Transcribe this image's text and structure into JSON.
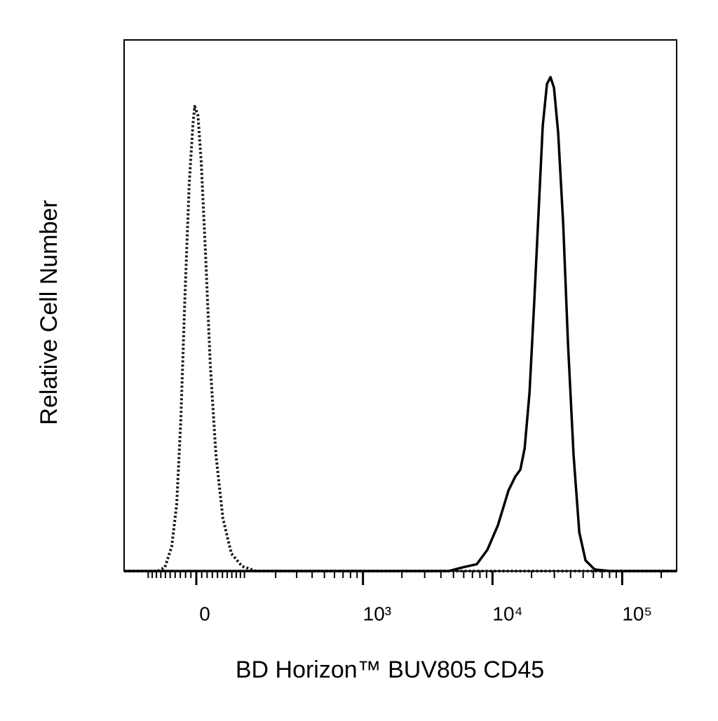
{
  "chart_data": {
    "type": "line",
    "xlabel": "BD Horizon™ BUV805 CD45",
    "ylabel": "Relative Cell Number",
    "xscale": "asinh",
    "xscale_linear_width": 104,
    "xlim": [
      -173,
      263000
    ],
    "ylim": [
      0,
      100
    ],
    "xticks": [
      0,
      {
        "value": 1000,
        "label": "10³"
      },
      {
        "value": 10000,
        "label": "10⁴"
      },
      {
        "value": 100000,
        "label": "10⁵"
      }
    ],
    "xminor_ticks": [
      -100,
      -90,
      -80,
      -70,
      -60,
      -50,
      -40,
      -30,
      -20,
      -10,
      10,
      20,
      30,
      40,
      50,
      60,
      70,
      80,
      90,
      100,
      200,
      300,
      400,
      500,
      600,
      700,
      800,
      900,
      2000,
      3000,
      4000,
      5000,
      6000,
      7000,
      8000,
      9000,
      20000,
      30000,
      40000,
      50000,
      60000,
      70000,
      80000,
      90000,
      200000
    ],
    "series": [
      {
        "color": "#1a1a1a",
        "style": "dotted",
        "x": [
          -173,
          -77,
          -61,
          -47,
          -37,
          -29,
          -21,
          -13,
          -6,
          -3,
          3,
          9,
          17,
          26,
          37,
          51,
          69,
          94,
          132,
          263000
        ],
        "values": [
          0,
          0,
          0.7,
          4.6,
          12.5,
          28.4,
          52.1,
          73.2,
          84.4,
          87.5,
          85.8,
          77.2,
          60.0,
          38.9,
          21.8,
          9.9,
          3.3,
          0.9,
          0,
          0
        ]
      },
      {
        "color": "#000000",
        "style": "solid",
        "x": [
          -173,
          4600,
          5900,
          7570,
          9130,
          11000,
          13300,
          15000,
          16400,
          17700,
          19300,
          21000,
          22700,
          24400,
          26300,
          28000,
          29800,
          32100,
          35100,
          38200,
          42200,
          46700,
          52200,
          61400,
          80700,
          263000
        ],
        "values": [
          0,
          0,
          0.7,
          1.3,
          4.0,
          8.6,
          15.2,
          17.8,
          19.1,
          23.1,
          33.6,
          50.8,
          67.9,
          83.8,
          91.7,
          93.0,
          91.0,
          82.5,
          65.3,
          42.9,
          21.8,
          7.3,
          2.0,
          0.3,
          0,
          0
        ]
      }
    ]
  }
}
